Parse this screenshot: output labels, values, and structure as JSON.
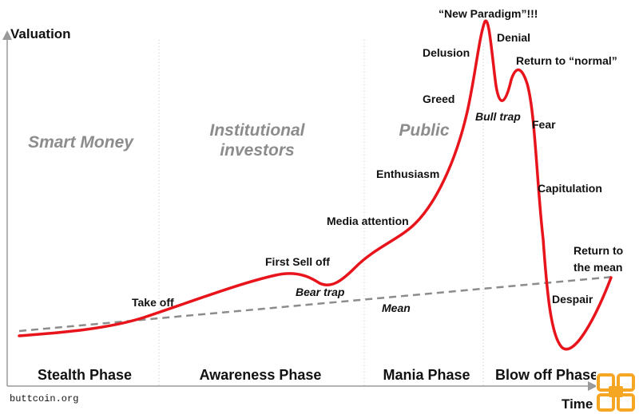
{
  "axes": {
    "y_label": "Valuation",
    "x_label": "Time"
  },
  "groups": {
    "smart_money": "Smart Money",
    "institutional_line1": "Institutional",
    "institutional_line2": "investors",
    "public": "Public"
  },
  "phases": {
    "stealth": "Stealth Phase",
    "awareness": "Awareness Phase",
    "mania": "Mania Phase",
    "blowoff": "Blow off Phase"
  },
  "annotations": {
    "take_off": "Take off",
    "first_sell_off": "First Sell off",
    "bear_trap": "Bear trap",
    "media_attention": "Media attention",
    "enthusiasm": "Enthusiasm",
    "greed": "Greed",
    "delusion": "Delusion",
    "new_paradigm": "“New Paradigm”!!!",
    "denial": "Denial",
    "bull_trap": "Bull trap",
    "return_to_normal": "Return to “normal”",
    "fear": "Fear",
    "capitulation": "Capitulation",
    "despair": "Despair",
    "return_to_mean_line1": "Return to",
    "return_to_mean_line2": "the mean",
    "mean": "Mean"
  },
  "credit": "buttcoin.org",
  "colors": {
    "curve": "#e8141b",
    "mean_line": "#8c8c8c",
    "group_text": "#8c8c8c",
    "logo_orange": "#f5a623"
  },
  "icons": {
    "corner_logo": "orange-square-logo-icon"
  }
}
